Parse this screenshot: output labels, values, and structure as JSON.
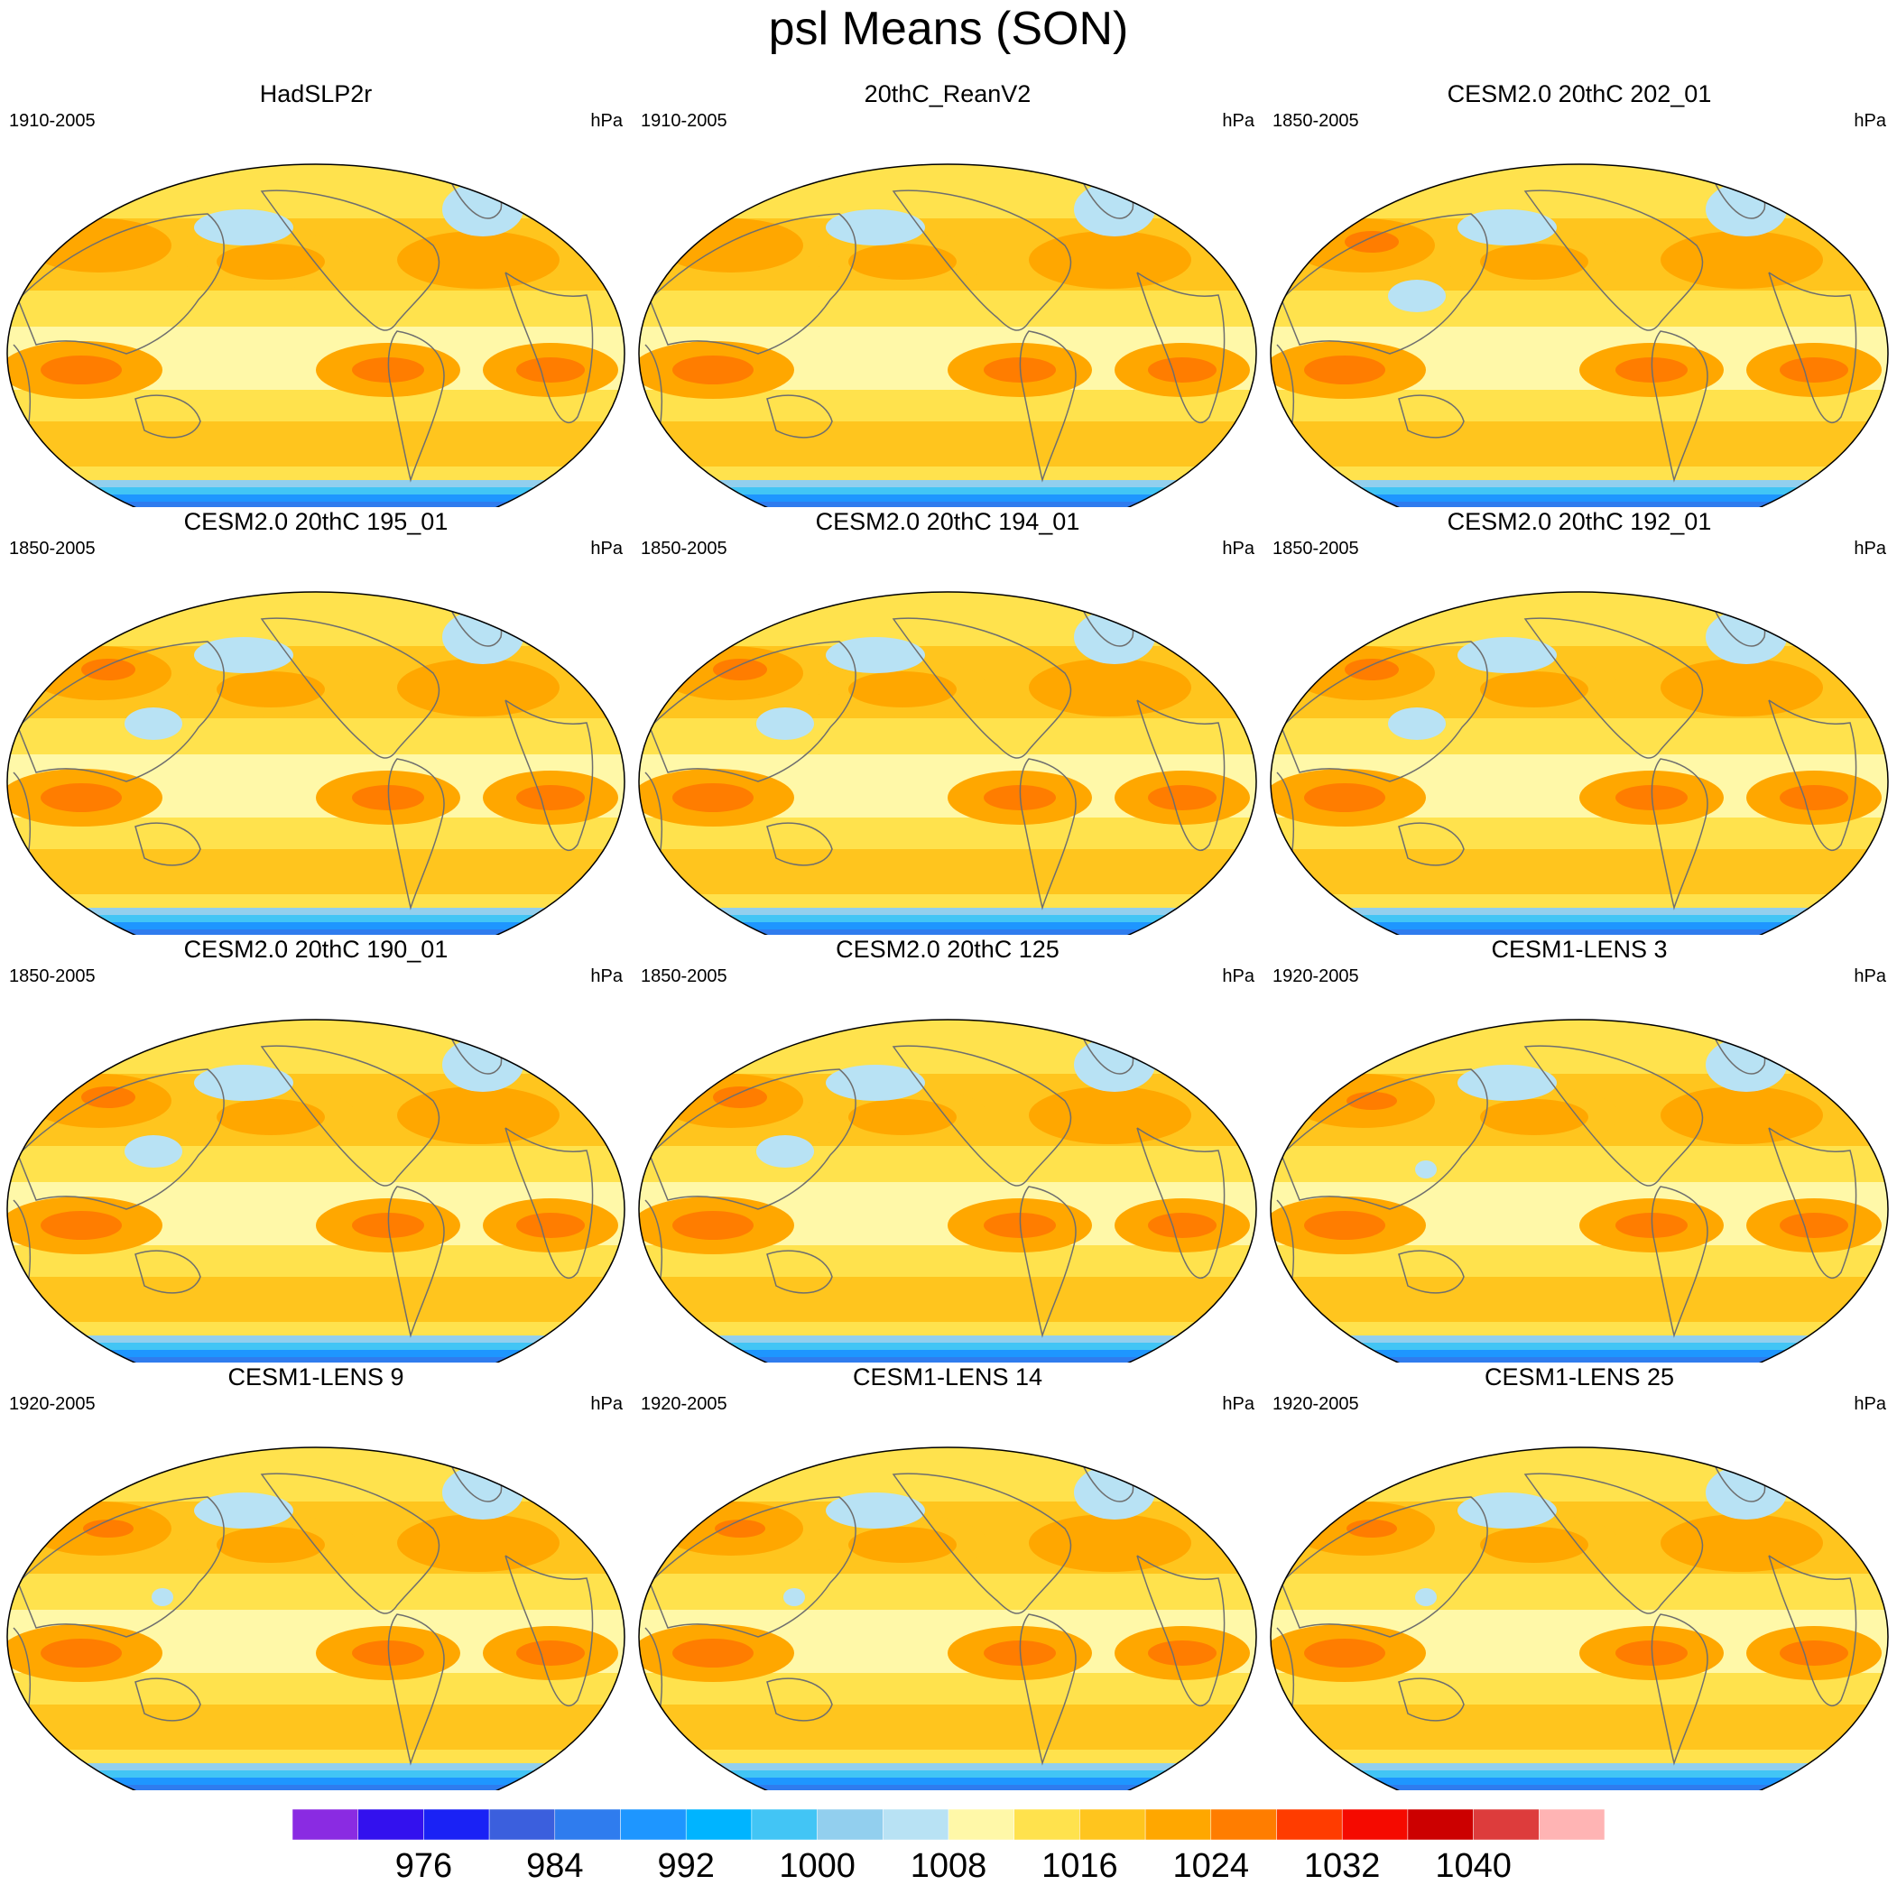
{
  "title": "psl Means (SON)",
  "units": "hPa",
  "panels": [
    {
      "title": "HadSLP2r",
      "period": "1910-2005",
      "variant": "obs"
    },
    {
      "title": "20thC_ReanV2",
      "period": "1910-2005",
      "variant": "rean"
    },
    {
      "title": "CESM2.0 20thC 202_01",
      "period": "1850-2005",
      "variant": "cesm2"
    },
    {
      "title": "CESM2.0 20thC 195_01",
      "period": "1850-2005",
      "variant": "cesm2"
    },
    {
      "title": "CESM2.0 20thC 194_01",
      "period": "1850-2005",
      "variant": "cesm2"
    },
    {
      "title": "CESM2.0 20thC 192_01",
      "period": "1850-2005",
      "variant": "cesm2"
    },
    {
      "title": "CESM2.0 20thC 190_01",
      "period": "1850-2005",
      "variant": "cesm2"
    },
    {
      "title": "CESM2.0 20thC 125",
      "period": "1850-2005",
      "variant": "cesm2"
    },
    {
      "title": "CESM1-LENS 3",
      "period": "1920-2005",
      "variant": "lens"
    },
    {
      "title": "CESM1-LENS 9",
      "period": "1920-2005",
      "variant": "lens"
    },
    {
      "title": "CESM1-LENS 14",
      "period": "1920-2005",
      "variant": "lens"
    },
    {
      "title": "CESM1-LENS 25",
      "period": "1920-2005",
      "variant": "lens"
    }
  ],
  "colorbar": {
    "colors": [
      "#8a2be2",
      "#3311ee",
      "#1a22f5",
      "#3b5fdd",
      "#2f7cee",
      "#1e96ff",
      "#00b4ff",
      "#42c5f5",
      "#92cfee",
      "#b8e2f4",
      "#fff8a8",
      "#ffe24d",
      "#ffc51e",
      "#ffa700",
      "#ff7d00",
      "#ff3c00",
      "#f50a00",
      "#cc0000",
      "#dd3c3c",
      "#ffb4b4"
    ],
    "labels": [
      "976",
      "984",
      "992",
      "1000",
      "1008",
      "1016",
      "1024",
      "1032",
      "1040"
    ]
  }
}
